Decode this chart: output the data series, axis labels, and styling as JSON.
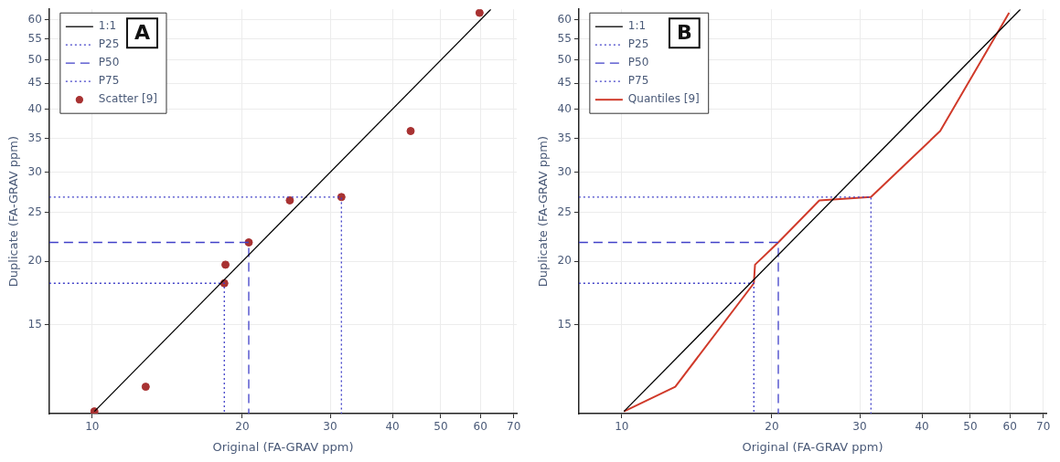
{
  "chart_data": [
    {
      "type": "scatter",
      "xlabel": "Original (FA-GRAV ppm)",
      "ylabel": "Duplicate (FA-GRAV ppm)",
      "log": "xy",
      "grid": true,
      "legend": "top left",
      "annotations": [
        "A"
      ],
      "xlim": [
        8.2,
        71
      ],
      "ylim": [
        10,
        63
      ],
      "xticks": [
        10,
        20,
        30,
        40,
        50,
        60,
        70
      ],
      "yticks": [
        15,
        20,
        25,
        30,
        35,
        40,
        45,
        50,
        55,
        60
      ],
      "series": [
        {
          "name": "1:1",
          "type": "line",
          "color": "#000000",
          "line_style": "solid",
          "x": [
            10.1,
            63
          ],
          "values": [
            10.1,
            63
          ]
        },
        {
          "name": "P25",
          "type": "line",
          "color": "#4040c8",
          "line_style": "dotted",
          "x": [
            8.2,
            18.4,
            18.4
          ],
          "values": [
            18.1,
            18.1,
            10
          ]
        },
        {
          "name": "P50",
          "type": "line",
          "color": "#4040c8",
          "line_style": "dashed",
          "x": [
            8.2,
            20.6,
            20.6
          ],
          "values": [
            21.8,
            21.8,
            10
          ]
        },
        {
          "name": "P75",
          "type": "line",
          "color": "#4040c8",
          "line_style": "dotted",
          "x": [
            8.2,
            31.6,
            31.6
          ],
          "values": [
            26.8,
            26.8,
            10
          ]
        },
        {
          "name": "Scatter [9]",
          "color": "#a83232",
          "marker": "circle",
          "x": [
            10.1,
            12.8,
            18.4,
            18.5,
            20.6,
            24.9,
            31.6,
            43.5,
            59.8
          ],
          "values": [
            10.1,
            11.3,
            18.1,
            19.7,
            21.8,
            26.4,
            26.8,
            36.2,
            62
          ]
        }
      ]
    },
    {
      "type": "line",
      "xlabel": "Original (FA-GRAV ppm)",
      "ylabel": "Duplicate (FA-GRAV ppm)",
      "log": "xy",
      "grid": true,
      "legend": "top left",
      "annotations": [
        "B"
      ],
      "xlim": [
        8.2,
        71
      ],
      "ylim": [
        10,
        63
      ],
      "xticks": [
        10,
        20,
        30,
        40,
        50,
        60,
        70
      ],
      "yticks": [
        15,
        20,
        25,
        30,
        35,
        40,
        45,
        50,
        55,
        60
      ],
      "series": [
        {
          "name": "1:1",
          "type": "line",
          "color": "#000000",
          "line_style": "solid",
          "x": [
            10.1,
            63
          ],
          "values": [
            10.1,
            63
          ]
        },
        {
          "name": "P25",
          "type": "line",
          "color": "#4040c8",
          "line_style": "dotted",
          "x": [
            8.2,
            18.4,
            18.4
          ],
          "values": [
            18.1,
            18.1,
            10
          ]
        },
        {
          "name": "P50",
          "type": "line",
          "color": "#4040c8",
          "line_style": "dashed",
          "x": [
            8.2,
            20.6,
            20.6
          ],
          "values": [
            21.8,
            21.8,
            10
          ]
        },
        {
          "name": "P75",
          "type": "line",
          "color": "#4040c8",
          "line_style": "dotted",
          "x": [
            8.2,
            31.6,
            31.6
          ],
          "values": [
            26.8,
            26.8,
            10
          ]
        },
        {
          "name": "Quantiles [9]",
          "color": "#d03a2a",
          "line_style": "solid",
          "x": [
            10.1,
            12.8,
            18.4,
            18.5,
            20.6,
            24.9,
            31.6,
            43.5,
            59.8
          ],
          "values": [
            10.1,
            11.3,
            18.1,
            19.7,
            21.8,
            26.4,
            26.8,
            36.2,
            62
          ]
        }
      ]
    }
  ]
}
